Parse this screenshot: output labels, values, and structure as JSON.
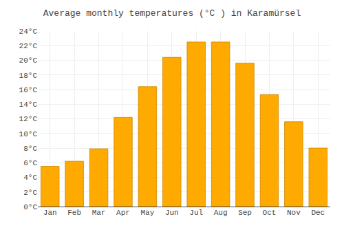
{
  "chart_data": {
    "type": "bar",
    "title": "Average monthly temperatures (°C ) in Karamürsel",
    "categories": [
      "Jan",
      "Feb",
      "Mar",
      "Apr",
      "May",
      "Jun",
      "Jul",
      "Aug",
      "Sep",
      "Oct",
      "Nov",
      "Dec"
    ],
    "values": [
      5.5,
      6.2,
      7.9,
      12.2,
      16.4,
      20.4,
      22.5,
      22.5,
      19.6,
      15.3,
      11.6,
      8.0
    ],
    "color": "#FFAA00",
    "ylim": [
      0,
      24
    ],
    "yticks": [
      {
        "value": 0,
        "label": "0°C"
      },
      {
        "value": 2,
        "label": "2°C"
      },
      {
        "value": 4,
        "label": "4°C"
      },
      {
        "value": 6,
        "label": "6°C"
      },
      {
        "value": 8,
        "label": "8°C"
      },
      {
        "value": 10,
        "label": "10°C"
      },
      {
        "value": 12,
        "label": "12°C"
      },
      {
        "value": 14,
        "label": "14°C"
      },
      {
        "value": 16,
        "label": "16°C"
      },
      {
        "value": 18,
        "label": "18°C"
      },
      {
        "value": 20,
        "label": "20°C"
      },
      {
        "value": 22,
        "label": "22°C"
      },
      {
        "value": 24,
        "label": "24°C"
      }
    ],
    "grid": true
  }
}
